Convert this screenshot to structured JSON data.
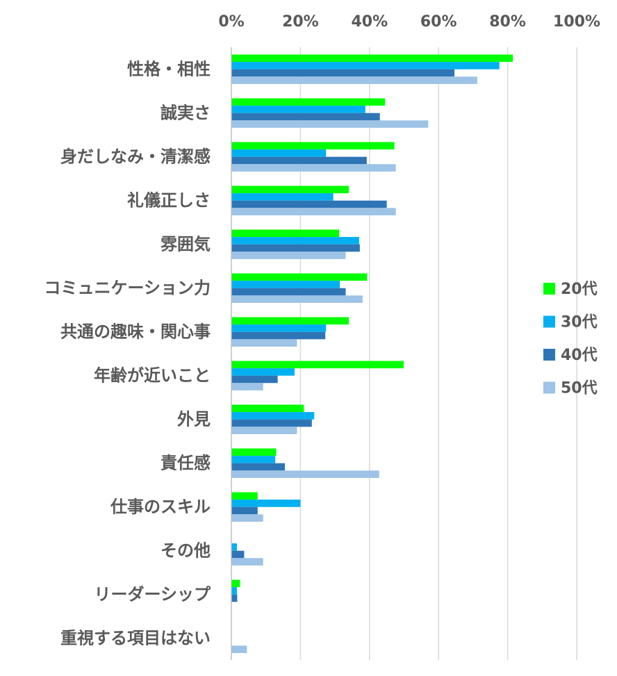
{
  "chart_data": {
    "type": "bar",
    "orientation": "horizontal",
    "title": "",
    "xlabel": "",
    "ylabel": "",
    "xlim": [
      0,
      100
    ],
    "x_ticks": [
      "0%",
      "20%",
      "40%",
      "60%",
      "80%",
      "100%"
    ],
    "grid": true,
    "legend_position": "right",
    "categories": [
      "性格・相性",
      "誠実さ",
      "身だしなみ・清潔感",
      "礼儀正しさ",
      "雰囲気",
      "コミュニケーション力",
      "共通の趣味・関心事",
      "年齢が近いこと",
      "外見",
      "責任感",
      "仕事のスキル",
      "その他",
      "リーダーシップ",
      "重視する項目はない"
    ],
    "series": [
      {
        "name": "20代",
        "color": "#00ff00",
        "values": [
          81.5,
          44.5,
          47.2,
          34.0,
          31.2,
          39.3,
          34.0,
          49.9,
          21.0,
          13.0,
          7.6,
          0,
          2.5,
          0
        ]
      },
      {
        "name": "30代",
        "color": "#00b0f0",
        "values": [
          77.6,
          38.8,
          27.4,
          29.5,
          37.0,
          31.4,
          27.4,
          18.3,
          24.0,
          12.7,
          20.0,
          1.6,
          1.6,
          0
        ]
      },
      {
        "name": "40代",
        "color": "#2e75b6",
        "values": [
          64.6,
          43.0,
          39.2,
          45.0,
          37.2,
          33.1,
          27.2,
          13.4,
          23.3,
          15.5,
          7.6,
          3.7,
          1.7,
          0
        ]
      },
      {
        "name": "50代",
        "color": "#9dc3e6",
        "values": [
          71.2,
          57.0,
          47.6,
          47.6,
          33.1,
          38.0,
          19.0,
          9.2,
          19.0,
          42.8,
          9.2,
          9.2,
          0,
          4.5
        ]
      }
    ]
  }
}
